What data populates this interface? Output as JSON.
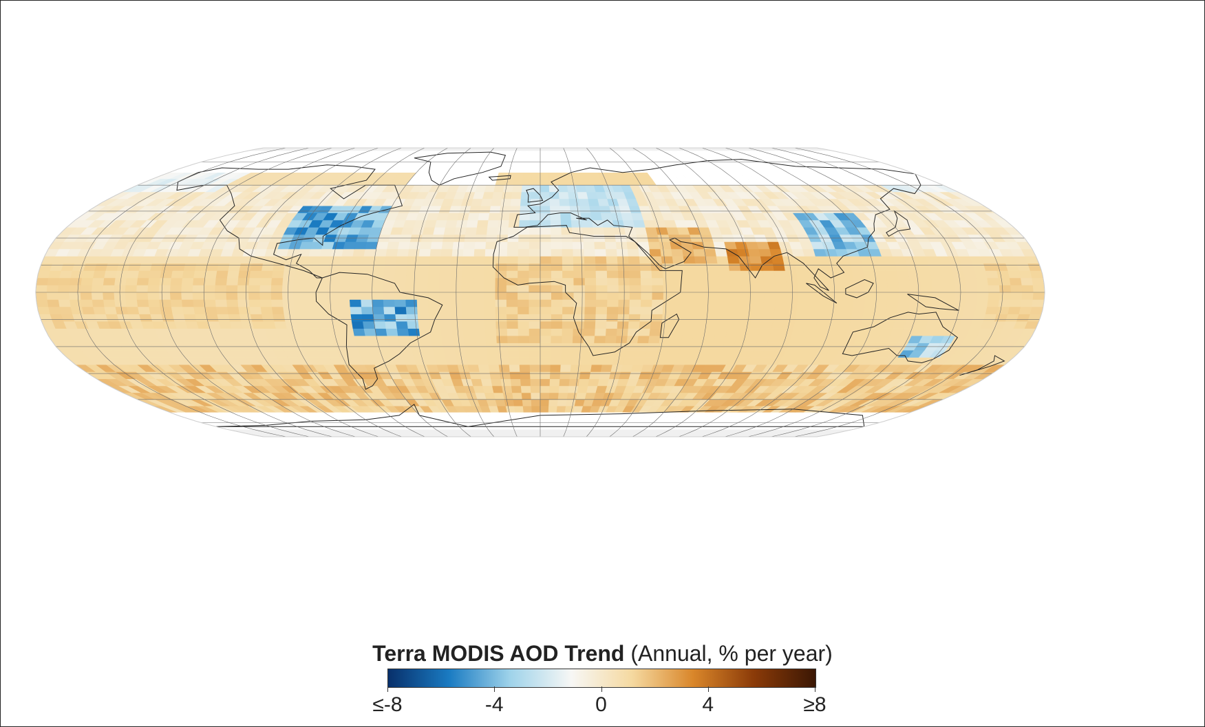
{
  "legend": {
    "title_bold": "Terra MODIS AOD Trend",
    "title_rest": "(Annual, % per year)",
    "ticks": [
      {
        "label": "≤-8",
        "value": -8
      },
      {
        "label": "-4",
        "value": -4
      },
      {
        "label": "0",
        "value": 0
      },
      {
        "label": "4",
        "value": 4
      },
      {
        "label": "≥8",
        "value": 8
      }
    ],
    "range": [
      -8,
      8
    ],
    "colors": [
      "#08306b",
      "#1a7bc2",
      "#9fd3ea",
      "#f7f7f5",
      "#f5d9a0",
      "#d9862a",
      "#8a3a08",
      "#3b1704"
    ]
  },
  "map": {
    "projection": "robinson",
    "no_data_color": "#ffffff",
    "background_color": "#f0f0f0",
    "graticule_color": "#555555"
  }
}
